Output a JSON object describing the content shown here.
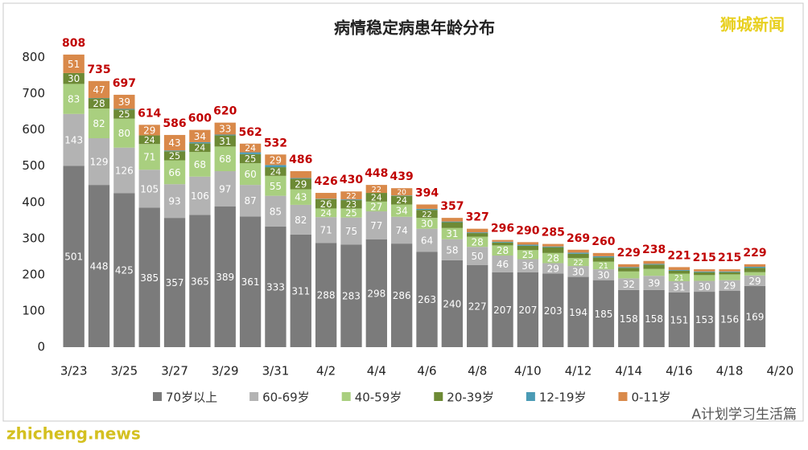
{
  "chart_data": {
    "type": "stacked_bar",
    "title": "病情稳定病患年龄分布",
    "watermark": "狮城新闻",
    "footer_left": "zhicheng.news",
    "footer_right": "A计划学习生活篇",
    "categories": [
      "3/23",
      null,
      "3/25",
      null,
      "3/27",
      null,
      "3/29",
      null,
      "3/31",
      null,
      "4/2",
      null,
      "4/4",
      null,
      "4/6",
      null,
      "4/8",
      null,
      "4/10",
      null,
      "4/12",
      null,
      "4/14",
      null,
      "4/16",
      null,
      "4/18",
      null,
      "4/20"
    ],
    "series": [
      {
        "name": "70岁以上",
        "color": "#7b7b7b",
        "values": [
          501,
          448,
          425,
          385,
          357,
          365,
          389,
          361,
          333,
          311,
          288,
          283,
          298,
          286,
          263,
          240,
          227,
          207,
          207,
          203,
          194,
          185,
          158,
          158,
          151,
          153,
          156,
          169,
          null
        ]
      },
      {
        "name": "60-69岁",
        "color": "#b3b3b3",
        "values": [
          143,
          129,
          126,
          105,
          93,
          106,
          97,
          87,
          85,
          82,
          71,
          75,
          77,
          74,
          64,
          58,
          50,
          46,
          36,
          29,
          30,
          30,
          32,
          39,
          31,
          30,
          29,
          29,
          null
        ]
      },
      {
        "name": "40-59岁",
        "color": "#a9cf7f",
        "values": [
          83,
          82,
          80,
          71,
          66,
          68,
          68,
          60,
          55,
          43,
          24,
          25,
          27,
          34,
          30,
          31,
          28,
          28,
          25,
          28,
          22,
          21,
          19,
          19,
          21,
          16,
          16,
          9,
          null
        ]
      },
      {
        "name": "20-39岁",
        "color": "#6d8a35",
        "values": [
          30,
          28,
          25,
          24,
          25,
          24,
          31,
          25,
          24,
          29,
          26,
          23,
          24,
          24,
          22,
          16,
          10,
          8,
          12,
          16,
          12,
          12,
          10,
          12,
          8,
          8,
          6,
          12,
          null
        ]
      },
      {
        "name": "12-19岁",
        "color": "#4a9bb5",
        "values": [
          0,
          1,
          2,
          0,
          2,
          3,
          2,
          5,
          6,
          2,
          1,
          2,
          0,
          1,
          3,
          2,
          2,
          2,
          3,
          2,
          3,
          3,
          2,
          2,
          2,
          2,
          2,
          3,
          null
        ]
      },
      {
        "name": "0-11岁",
        "color": "#d9894a",
        "values": [
          51,
          47,
          39,
          29,
          43,
          34,
          33,
          24,
          29,
          19,
          16,
          22,
          22,
          20,
          12,
          10,
          10,
          5,
          7,
          7,
          8,
          9,
          8,
          8,
          8,
          6,
          6,
          7,
          null
        ]
      }
    ],
    "totals": [
      808,
      735,
      697,
      614,
      586,
      600,
      620,
      562,
      532,
      486,
      426,
      430,
      448,
      439,
      394,
      357,
      327,
      296,
      290,
      285,
      269,
      260,
      229,
      238,
      221,
      215,
      215,
      229,
      null
    ],
    "ylim": [
      0,
      830
    ],
    "yticks": [
      0,
      100,
      200,
      300,
      400,
      500,
      600,
      700,
      800
    ],
    "legend": "bottom"
  }
}
